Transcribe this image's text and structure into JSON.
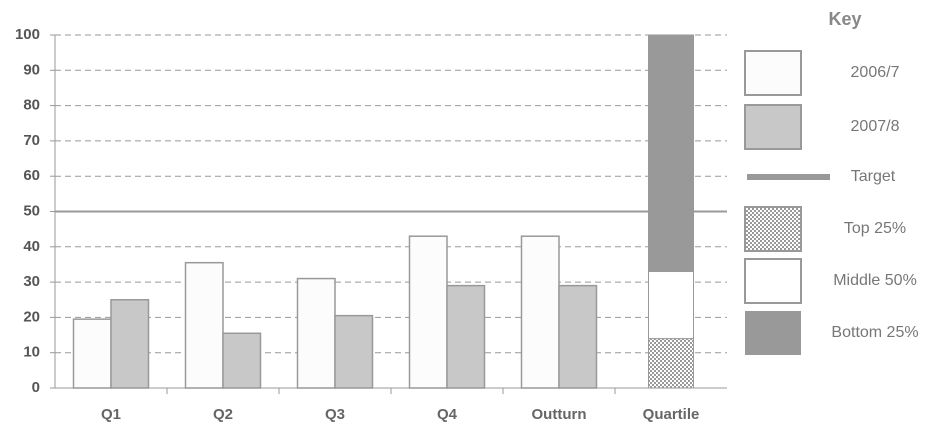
{
  "chart_data": {
    "type": "bar",
    "legend_title": "Key",
    "categories": [
      "Q1",
      "Q2",
      "Q3",
      "Q4",
      "Outturn",
      "Quartile"
    ],
    "series": [
      {
        "name": "2006/7",
        "color": "#fcfcfc",
        "values": [
          19.5,
          35.5,
          31,
          43,
          43,
          null
        ]
      },
      {
        "name": "2007/8",
        "color": "#c8c8c8",
        "values": [
          25,
          15.5,
          20.5,
          29,
          29,
          null
        ]
      },
      {
        "name": "Top 25%",
        "color": "#999999",
        "pattern": "checker",
        "stack": true,
        "values": [
          null,
          null,
          null,
          null,
          null,
          14
        ]
      },
      {
        "name": "Middle 50%",
        "color": "#ffffff",
        "stack": true,
        "values": [
          null,
          null,
          null,
          null,
          null,
          19
        ]
      },
      {
        "name": "Bottom 25%",
        "color": "#999999",
        "stack": true,
        "values": [
          null,
          null,
          null,
          null,
          null,
          67
        ]
      }
    ],
    "target": {
      "name": "Target",
      "value": 50,
      "color": "#999999"
    },
    "ylim": [
      0,
      100
    ],
    "yticks": [
      0,
      10,
      20,
      30,
      40,
      50,
      60,
      70,
      80,
      90,
      100
    ],
    "grid": true
  }
}
